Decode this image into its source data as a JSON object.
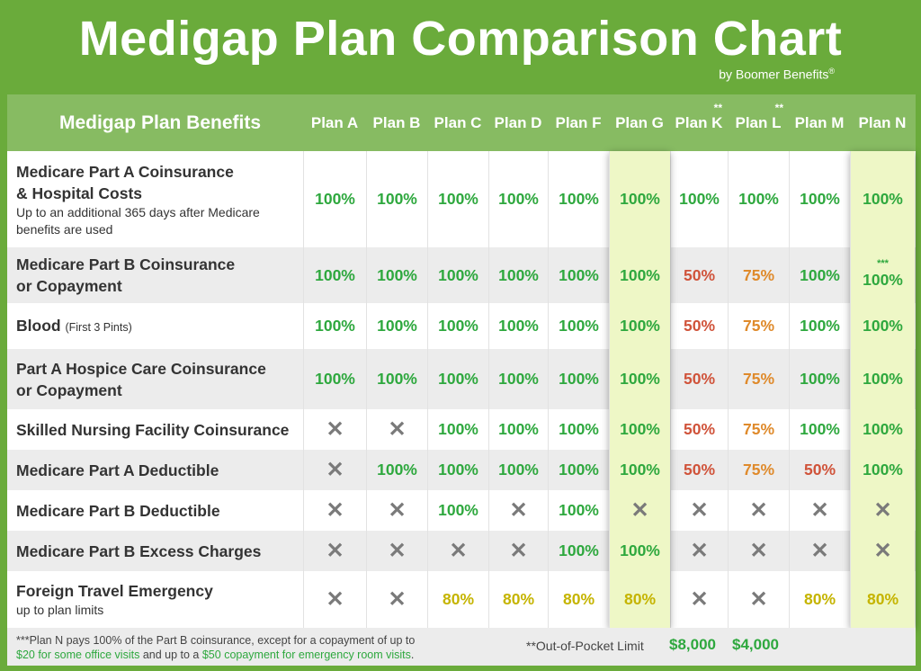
{
  "title": "Medigap Plan Comparison Chart",
  "byline": "by Boomer Benefits",
  "byline_mark": "®",
  "header": {
    "label": "Medigap Plan Benefits",
    "plans": [
      {
        "name": "Plan A"
      },
      {
        "name": "Plan B"
      },
      {
        "name": "Plan C"
      },
      {
        "name": "Plan D"
      },
      {
        "name": "Plan F"
      },
      {
        "name": "Plan G",
        "highlight": true
      },
      {
        "name": "Plan K",
        "mark": "**"
      },
      {
        "name": "Plan L",
        "mark": "**"
      },
      {
        "name": "Plan M"
      },
      {
        "name": "Plan N",
        "highlight": true
      }
    ]
  },
  "colors": {
    "100%": "#2ea83e",
    "50%": "#d0533a",
    "75%": "#df8a2b",
    "80%": "#c5b400",
    "x": "#7a7a7a",
    "background": "#6aab3b",
    "highlight": "#eef7c6"
  },
  "rows": [
    {
      "label": "Medicare Part A Coinsurance",
      "label2": "& Hospital Costs",
      "sub": "Up to an additional 365 days after Medicare benefits are used",
      "values": [
        "100%",
        "100%",
        "100%",
        "100%",
        "100%",
        "100%",
        "100%",
        "100%",
        "100%",
        "100%"
      ]
    },
    {
      "label": "Medicare Part B Coinsurance",
      "label2": "or Copayment",
      "values": [
        "100%",
        "100%",
        "100%",
        "100%",
        "100%",
        "100%",
        "50%",
        "75%",
        "100%",
        "100%"
      ],
      "marks": {
        "9": "***"
      }
    },
    {
      "label": "Blood",
      "inline": "(First 3 Pints)",
      "values": [
        "100%",
        "100%",
        "100%",
        "100%",
        "100%",
        "100%",
        "50%",
        "75%",
        "100%",
        "100%"
      ]
    },
    {
      "label": "Part A Hospice Care Coinsurance",
      "label2": "or Copayment",
      "values": [
        "100%",
        "100%",
        "100%",
        "100%",
        "100%",
        "100%",
        "50%",
        "75%",
        "100%",
        "100%"
      ]
    },
    {
      "label": "Skilled Nursing Facility Coinsurance",
      "values": [
        "x",
        "x",
        "100%",
        "100%",
        "100%",
        "100%",
        "50%",
        "75%",
        "100%",
        "100%"
      ]
    },
    {
      "label": "Medicare Part A Deductible",
      "values": [
        "x",
        "100%",
        "100%",
        "100%",
        "100%",
        "100%",
        "50%",
        "75%",
        "50%",
        "100%"
      ]
    },
    {
      "label": "Medicare Part B Deductible",
      "values": [
        "x",
        "x",
        "100%",
        "x",
        "100%",
        "x",
        "x",
        "x",
        "x",
        "x"
      ]
    },
    {
      "label": "Medicare Part B Excess Charges",
      "values": [
        "x",
        "x",
        "x",
        "x",
        "100%",
        "100%",
        "x",
        "x",
        "x",
        "x"
      ]
    },
    {
      "label": "Foreign Travel Emergency",
      "sub": "up to plan limits",
      "values": [
        "x",
        "x",
        "80%",
        "80%",
        "80%",
        "80%",
        "x",
        "x",
        "80%",
        "80%"
      ]
    }
  ],
  "footer": {
    "note_1": "***Plan N pays 100% of the Part B coinsurance, except for a copayment of up to",
    "note_2a": "$20 for some office visits",
    "note_2b": " and up to a ",
    "note_2c": "$50 copayment for emergency room visits",
    "note_2d": ".",
    "oop_label": "**Out-of-Pocket Limit",
    "oop_k": "$8,000",
    "oop_l": "$4,000"
  }
}
